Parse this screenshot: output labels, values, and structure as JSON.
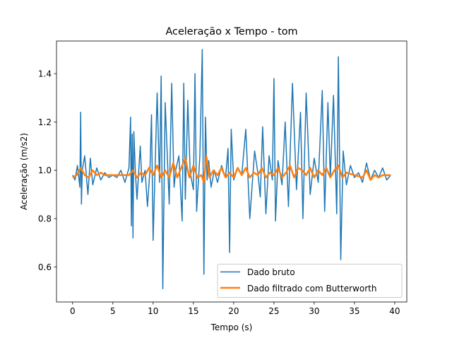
{
  "chart_data": {
    "type": "line",
    "title": "Aceleração x Tempo - tom",
    "xlabel": "Tempo (s)",
    "ylabel": "Aceleração (m/s2)",
    "xlim": [
      -2,
      41.5
    ],
    "ylim": [
      0.455,
      1.535
    ],
    "xticks": [
      0,
      5,
      10,
      15,
      20,
      25,
      30,
      35,
      40
    ],
    "yticks": [
      0.6,
      0.8,
      1.0,
      1.2,
      1.4
    ],
    "xtick_labels": [
      "0",
      "5",
      "10",
      "15",
      "20",
      "25",
      "30",
      "35",
      "40"
    ],
    "ytick_labels": [
      "0.6",
      "0.8",
      "1.0",
      "1.2",
      "1.4"
    ],
    "grid": false,
    "legend_position": "lower-right",
    "series": [
      {
        "name": "Dado bruto",
        "color": "#1f77b4",
        "x": [
          0.0,
          0.3,
          0.6,
          0.9,
          1.0,
          1.1,
          1.2,
          1.5,
          1.9,
          2.2,
          2.5,
          3.0,
          3.5,
          4.0,
          4.5,
          5.0,
          5.5,
          6.0,
          6.5,
          7.0,
          7.2,
          7.3,
          7.4,
          7.5,
          7.6,
          7.8,
          8.0,
          8.4,
          8.6,
          9.0,
          9.3,
          9.6,
          9.8,
          10.0,
          10.5,
          10.8,
          11.0,
          11.2,
          11.5,
          12.0,
          12.3,
          12.6,
          12.8,
          13.2,
          13.6,
          13.8,
          14.0,
          14.3,
          14.6,
          15.0,
          15.2,
          15.4,
          15.8,
          16.1,
          16.3,
          16.5,
          16.7,
          16.9,
          17.2,
          17.6,
          18.0,
          18.5,
          19.0,
          19.3,
          19.5,
          19.7,
          20.0,
          20.5,
          21.0,
          21.5,
          22.0,
          22.6,
          23.0,
          23.3,
          23.6,
          24.0,
          24.4,
          24.8,
          25.0,
          25.2,
          25.5,
          26.0,
          26.4,
          26.8,
          27.3,
          27.8,
          28.3,
          28.6,
          29.0,
          29.5,
          30.0,
          30.5,
          31.0,
          31.3,
          31.7,
          32.0,
          32.4,
          32.8,
          33.0,
          33.3,
          33.6,
          34.0,
          34.5,
          35.0,
          35.5,
          36.0,
          36.5,
          37.0,
          37.5,
          38.0,
          38.5,
          39.0,
          39.5
        ],
        "values": [
          0.98,
          0.96,
          1.02,
          0.93,
          1.24,
          0.86,
          1.0,
          1.06,
          0.9,
          1.05,
          0.94,
          1.01,
          0.96,
          0.99,
          0.97,
          0.98,
          0.97,
          1.0,
          0.95,
          1.01,
          1.22,
          0.77,
          1.15,
          0.72,
          1.16,
          0.99,
          0.88,
          1.1,
          0.95,
          1.0,
          0.85,
          1.0,
          1.23,
          0.71,
          1.32,
          0.95,
          1.39,
          0.51,
          1.28,
          0.86,
          1.36,
          0.93,
          1.0,
          1.06,
          0.79,
          1.36,
          0.88,
          1.29,
          0.99,
          0.92,
          1.4,
          0.83,
          1.06,
          1.5,
          0.57,
          1.22,
          0.96,
          1.04,
          0.93,
          1.0,
          0.95,
          1.02,
          0.97,
          1.09,
          0.66,
          1.17,
          0.96,
          1.01,
          0.98,
          1.17,
          0.8,
          1.08,
          0.99,
          0.89,
          1.18,
          0.82,
          1.06,
          0.96,
          1.38,
          0.79,
          1.04,
          0.94,
          1.2,
          0.85,
          1.36,
          0.92,
          1.24,
          0.8,
          1.32,
          0.9,
          1.05,
          0.95,
          1.33,
          0.83,
          1.28,
          0.97,
          1.31,
          0.82,
          1.47,
          0.63,
          1.08,
          0.94,
          1.02,
          0.97,
          0.99,
          0.95,
          1.03,
          0.96,
          1.0,
          0.97,
          1.01,
          0.96,
          0.98
        ]
      },
      {
        "name": "Dado filtrado com Butterworth",
        "color": "#ff7f0e",
        "x": [
          0.0,
          0.5,
          1.0,
          1.5,
          2.0,
          2.5,
          3.0,
          3.5,
          4.0,
          5.0,
          6.0,
          7.0,
          7.5,
          8.0,
          8.5,
          9.0,
          9.5,
          10.0,
          10.5,
          11.0,
          11.5,
          12.0,
          12.5,
          13.0,
          13.5,
          14.0,
          14.5,
          15.0,
          15.5,
          16.0,
          16.3,
          16.6,
          17.0,
          17.5,
          18.0,
          18.5,
          19.0,
          19.5,
          20.0,
          20.5,
          21.0,
          21.5,
          22.0,
          22.5,
          23.0,
          23.5,
          24.0,
          24.5,
          25.0,
          25.5,
          26.0,
          26.5,
          27.0,
          27.5,
          28.0,
          28.5,
          29.0,
          29.5,
          30.0,
          30.5,
          31.0,
          31.5,
          32.0,
          32.5,
          33.0,
          33.5,
          34.0,
          35.0,
          36.0,
          36.5,
          37.0,
          37.5,
          38.0,
          38.5,
          39.0,
          39.5
        ],
        "values": [
          0.97,
          0.98,
          1.01,
          0.98,
          0.97,
          1.0,
          0.98,
          0.99,
          0.98,
          0.98,
          0.98,
          0.98,
          1.0,
          0.97,
          0.99,
          0.98,
          1.01,
          0.98,
          1.02,
          0.97,
          1.0,
          0.97,
          1.03,
          0.97,
          1.01,
          1.05,
          0.97,
          1.02,
          0.97,
          0.98,
          0.95,
          1.06,
          0.97,
          1.0,
          0.98,
          1.01,
          0.97,
          0.99,
          0.97,
          1.01,
          0.98,
          1.01,
          0.97,
          0.99,
          0.98,
          1.01,
          0.97,
          0.99,
          0.98,
          1.01,
          0.97,
          0.99,
          1.02,
          0.97,
          1.01,
          1.0,
          0.98,
          1.01,
          0.97,
          1.0,
          0.98,
          1.01,
          0.97,
          1.0,
          1.02,
          0.97,
          0.99,
          0.98,
          0.97,
          1.0,
          0.96,
          0.98,
          0.97,
          0.98,
          0.98,
          0.98
        ]
      }
    ]
  }
}
